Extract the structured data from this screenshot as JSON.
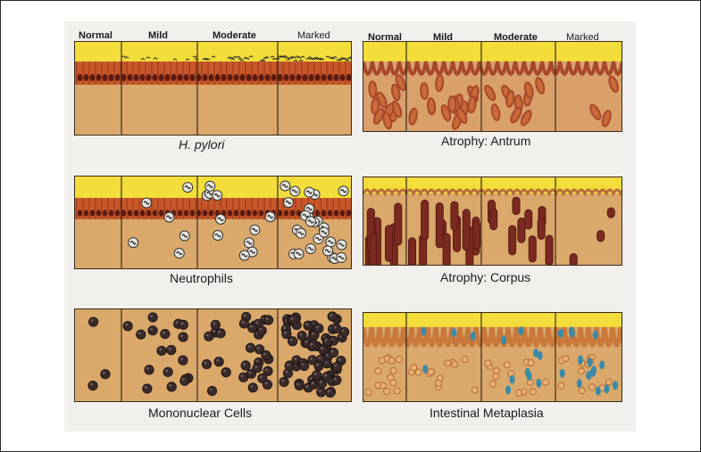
{
  "grades": [
    "Normal",
    "Mild",
    "Moderate",
    "Marked"
  ],
  "captions": {
    "hpylori": "H. pylori",
    "neutrophils": "Neutrophils",
    "mononuclear": "Mononuclear Cells",
    "antrum": "Atrophy:  Antrum",
    "corpus": "Atrophy:  Corpus",
    "metaplasia": "Intestinal Metaplasia"
  },
  "colors": {
    "mucus": "#f2dd3a",
    "epithelium": "#c8582a",
    "nucleus": "#5a1a10",
    "stroma": "#d9a86a",
    "gland": "#a8482a",
    "mononuclear": "#3a2a2a",
    "goblet": "#3a8aa8"
  }
}
